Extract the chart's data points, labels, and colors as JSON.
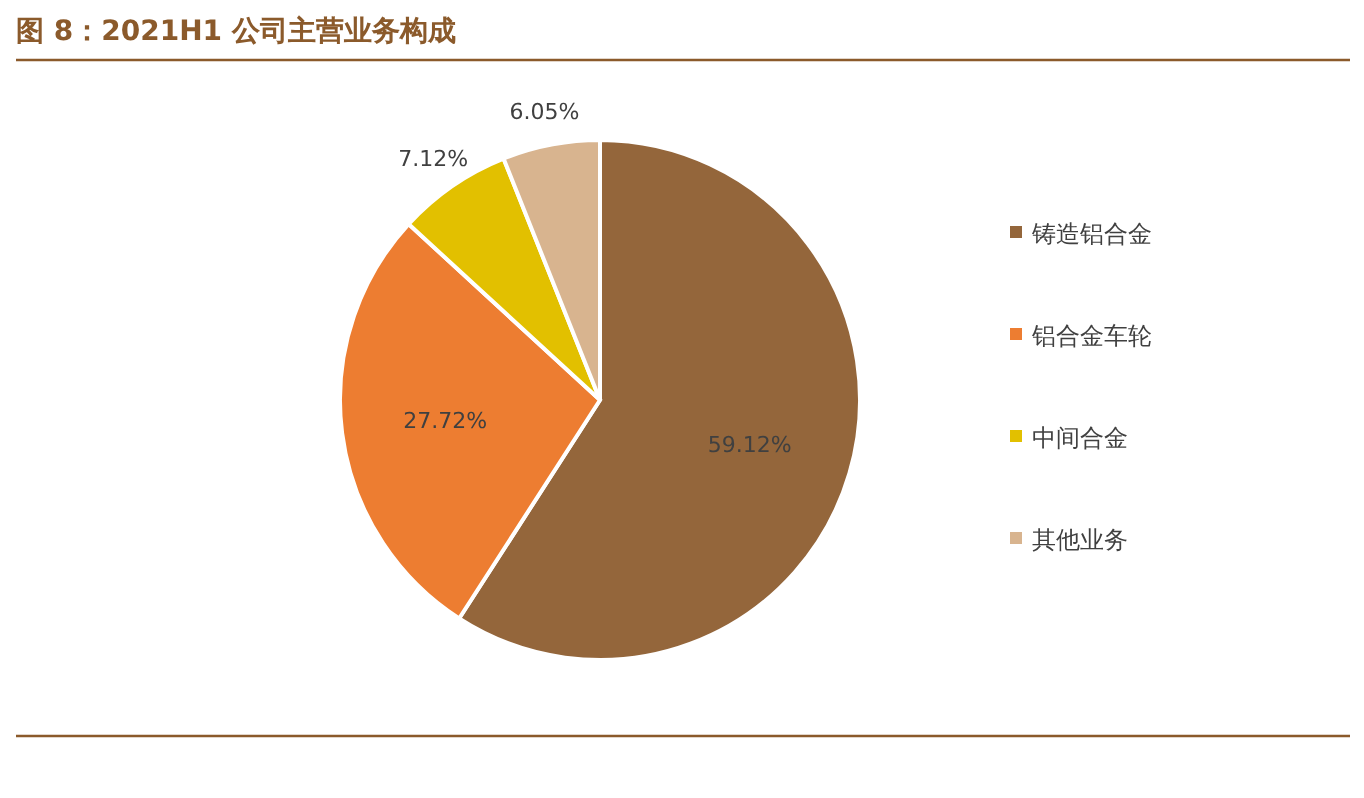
{
  "chart_data": {
    "type": "pie",
    "title": "图 8：2021H1 公司主营业务构成",
    "categories": [
      "铸造铝合金",
      "铝合金车轮",
      "中间合金",
      "其他业务"
    ],
    "values": [
      59.12,
      27.72,
      7.12,
      6.05
    ],
    "colors": [
      "#94663b",
      "#ed7d31",
      "#e2c000",
      "#d8b48f"
    ],
    "value_labels": [
      "59.12%",
      "27.72%",
      "7.12%",
      "6.05%"
    ],
    "legend": "right"
  }
}
